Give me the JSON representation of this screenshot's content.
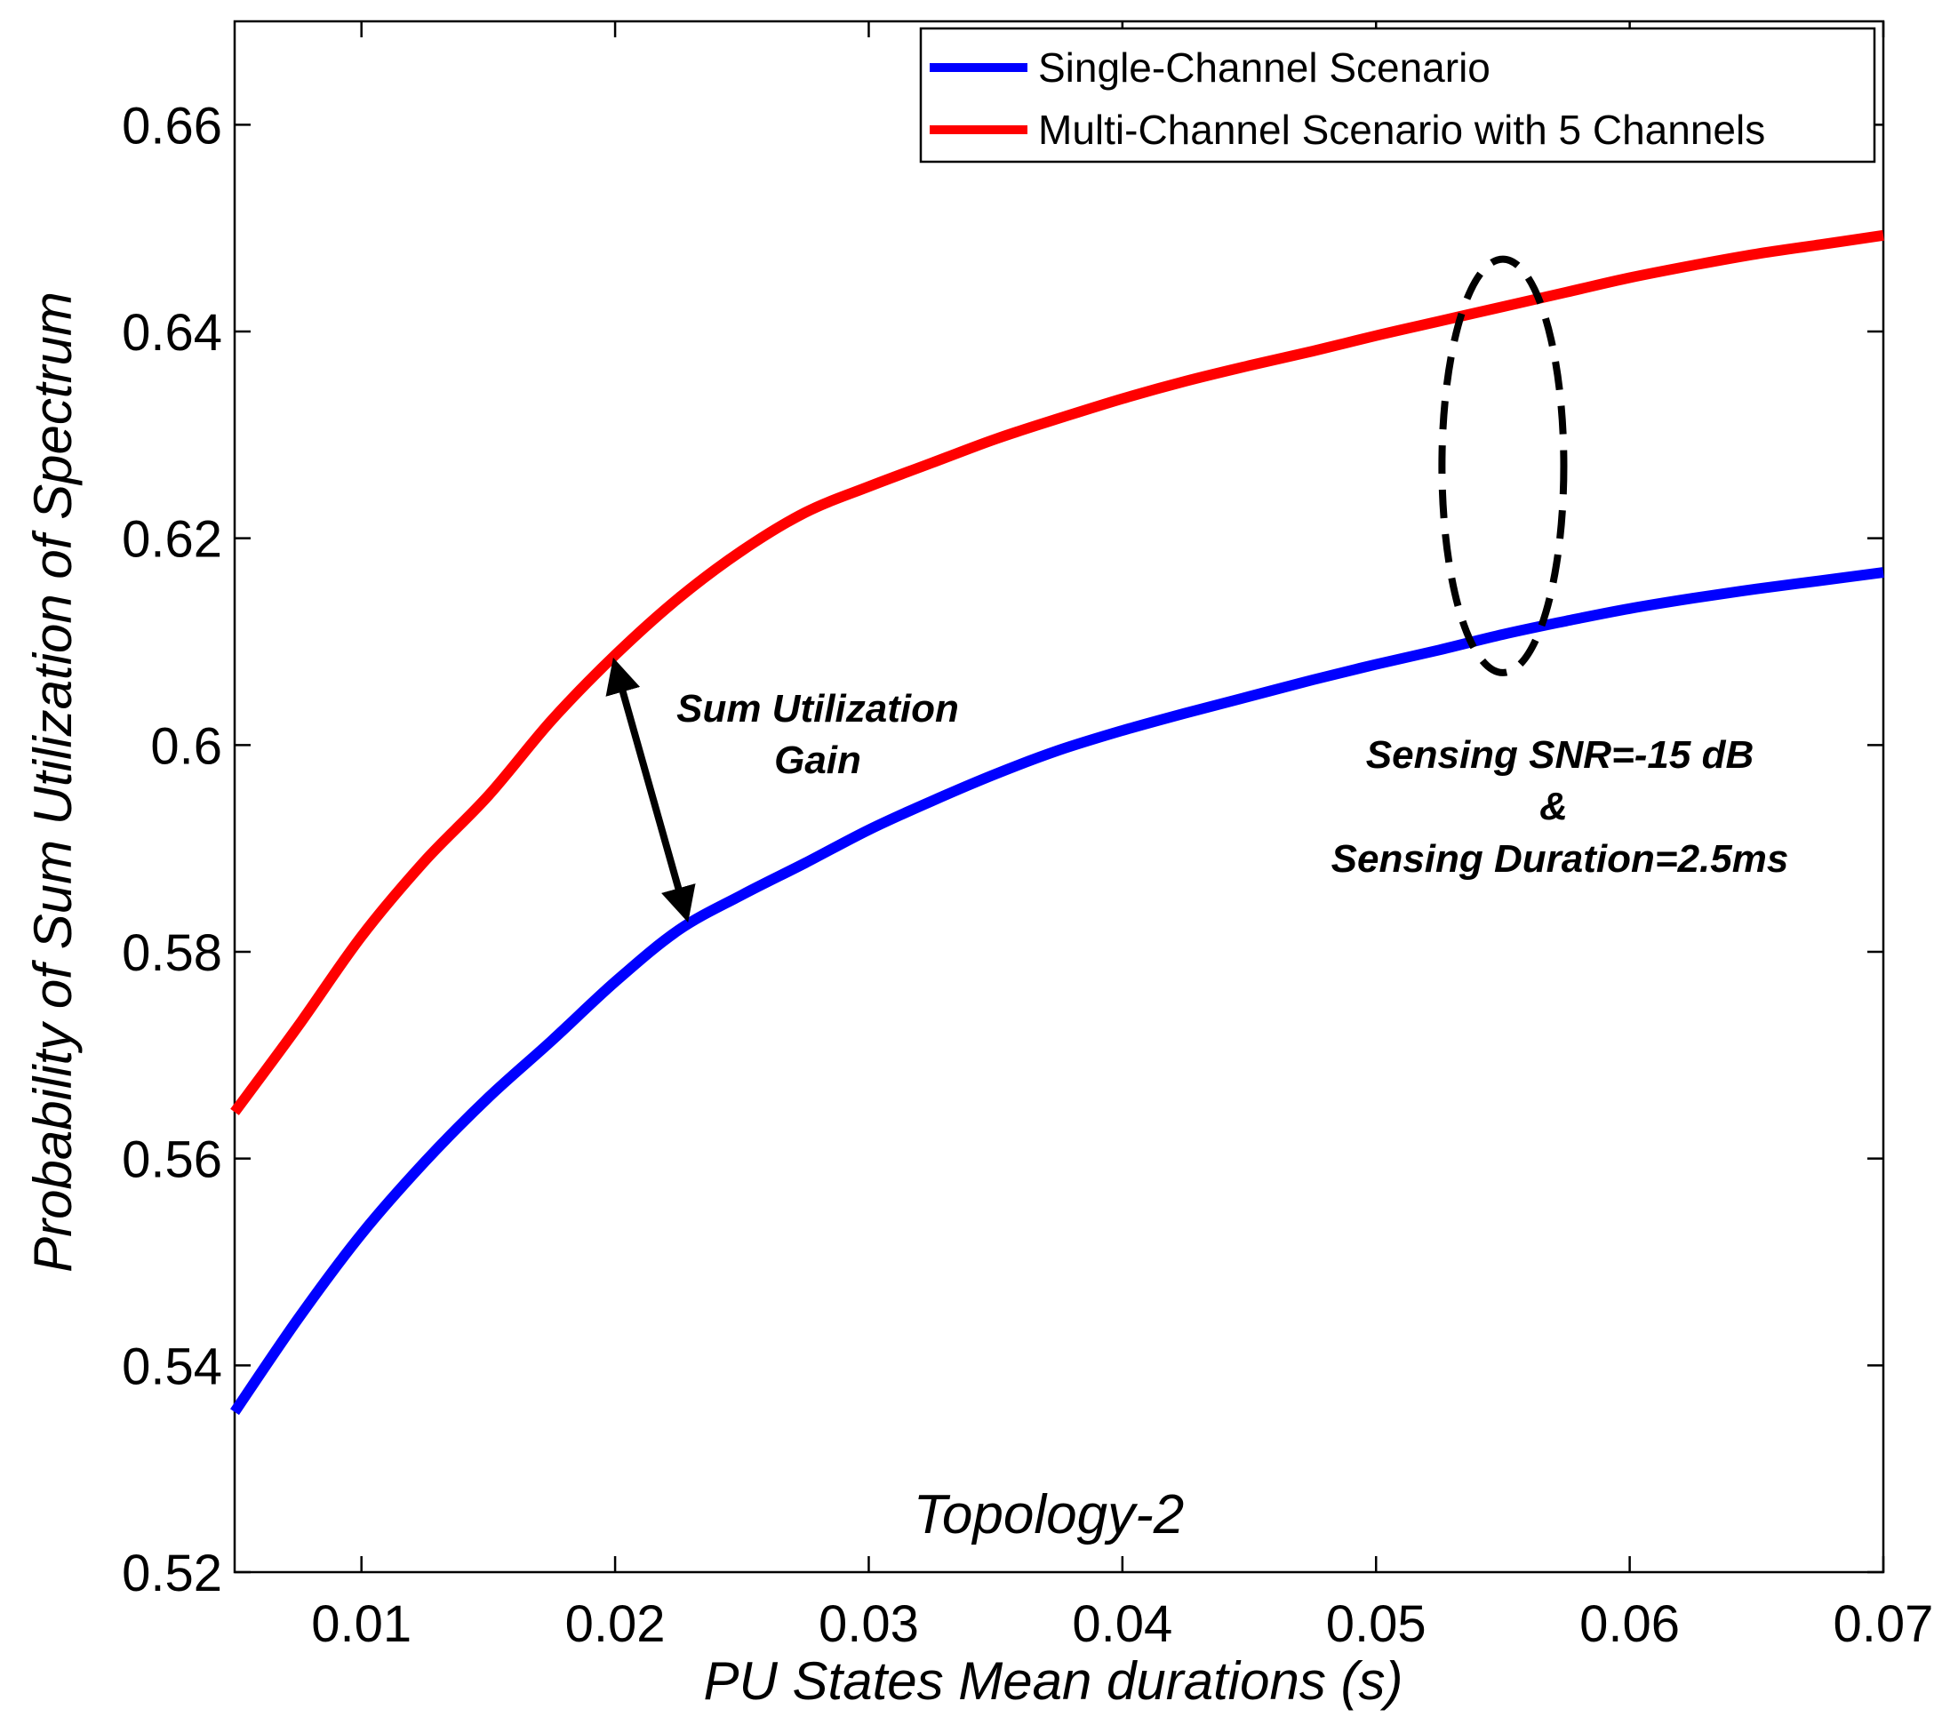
{
  "chart_data": {
    "type": "line",
    "title": "",
    "xlabel": "PU States Mean durations (s)",
    "ylabel": "Probability of Sum Utilization of Spectrum",
    "xlim": [
      0.005,
      0.07
    ],
    "ylim": [
      0.52,
      0.67
    ],
    "xticks": [
      0.01,
      0.02,
      0.03,
      0.04,
      0.05,
      0.06,
      0.07
    ],
    "xtick_labels": [
      "0.01",
      "0.02",
      "0.03",
      "0.04",
      "0.05",
      "0.06",
      "0.07"
    ],
    "yticks": [
      0.52,
      0.54,
      0.56,
      0.58,
      0.6,
      0.62,
      0.64,
      0.66
    ],
    "ytick_labels": [
      "0.52",
      "0.54",
      "0.56",
      "0.58",
      "0.6",
      "0.62",
      "0.64",
      "0.66"
    ],
    "grid": false,
    "legend_position": "top-right",
    "x": [
      0.005,
      0.0075,
      0.01,
      0.0125,
      0.015,
      0.0175,
      0.02,
      0.0225,
      0.025,
      0.0275,
      0.03,
      0.0325,
      0.035,
      0.0375,
      0.04,
      0.0425,
      0.045,
      0.0475,
      0.05,
      0.0525,
      0.055,
      0.0575,
      0.06,
      0.0625,
      0.065,
      0.0675,
      0.07
    ],
    "series": [
      {
        "name": "Single-Channel Scenario",
        "color": "#0000ff",
        "values": [
          0.5355,
          0.5445,
          0.5527,
          0.5597,
          0.5659,
          0.5714,
          0.5771,
          0.5821,
          0.5855,
          0.5886,
          0.5918,
          0.5946,
          0.5972,
          0.5995,
          0.6014,
          0.6031,
          0.6047,
          0.6063,
          0.6078,
          0.6092,
          0.6107,
          0.612,
          0.6132,
          0.6142,
          0.6151,
          0.6159,
          0.6167
        ]
      },
      {
        "name": "Multi-Channel Scenario with 5 Channels",
        "color": "#ff0000",
        "values": [
          0.5645,
          0.5728,
          0.5815,
          0.5888,
          0.5951,
          0.6024,
          0.6087,
          0.6142,
          0.6188,
          0.6225,
          0.625,
          0.6273,
          0.6296,
          0.6316,
          0.6335,
          0.6352,
          0.6367,
          0.6381,
          0.6396,
          0.641,
          0.6424,
          0.6438,
          0.6452,
          0.6464,
          0.6475,
          0.6484,
          0.6493
        ]
      }
    ],
    "annotations": {
      "gain_line1": "Sum Utilization",
      "gain_line2": "Gain",
      "gain_arrow": {
        "x1": 0.02,
        "y1": 0.6078,
        "x2": 0.0228,
        "y2": 0.5835
      },
      "snr_line1": "Sensing SNR=-15 dB",
      "snr_line2": "&",
      "snr_line3": "Sensing Duration=2.5ms",
      "ellipse": {
        "cx": 0.055,
        "cy": 0.627,
        "rx": 0.001,
        "ry": 0.02
      },
      "topology": "Topology-2"
    }
  }
}
